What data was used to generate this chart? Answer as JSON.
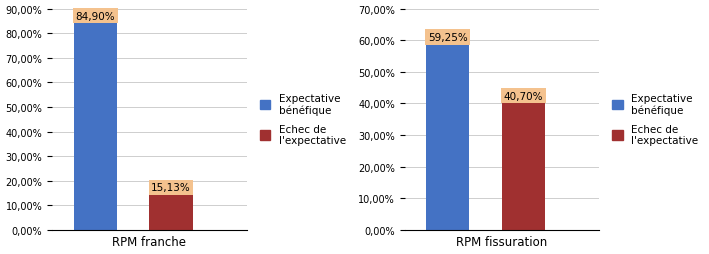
{
  "chart1": {
    "xlabel": "RPM franche",
    "values": [
      0.849,
      0.1513
    ],
    "labels": [
      "84,90%",
      "15,13%"
    ],
    "ylim": [
      0,
      0.9
    ],
    "yticks": [
      0.0,
      0.1,
      0.2,
      0.3,
      0.4,
      0.5,
      0.6,
      0.7,
      0.8,
      0.9
    ],
    "ytick_labels": [
      "0,00%",
      "10,00%",
      "20,00%",
      "30,00%",
      "40,00%",
      "50,00%",
      "60,00%",
      "70,00%",
      "80,00%",
      "90,00%"
    ],
    "x_positions": [
      0.2,
      0.55
    ]
  },
  "chart2": {
    "xlabel": "RPM fissuration",
    "values": [
      0.5925,
      0.407
    ],
    "labels": [
      "59,25%",
      "40,70%"
    ],
    "ylim": [
      0,
      0.7
    ],
    "yticks": [
      0.0,
      0.1,
      0.2,
      0.3,
      0.4,
      0.5,
      0.6,
      0.7
    ],
    "ytick_labels": [
      "0,00%",
      "10,00%",
      "20,00%",
      "30,00%",
      "40,00%",
      "50,00%",
      "60,00%",
      "70,00%"
    ],
    "x_positions": [
      0.2,
      0.55
    ]
  },
  "bar_colors": [
    "#4472C4",
    "#A03030"
  ],
  "label_bg_color": "#F4C28E",
  "legend_labels": [
    "Expectative\nbénéfique",
    "Echec de\nl'expectative"
  ],
  "bar_width": 0.2,
  "label_fontsize": 7.5,
  "tick_fontsize": 7,
  "xlabel_fontsize": 8.5,
  "legend_fontsize": 7.5,
  "background_color": "#FFFFFF",
  "grid_color": "#BBBBBB"
}
